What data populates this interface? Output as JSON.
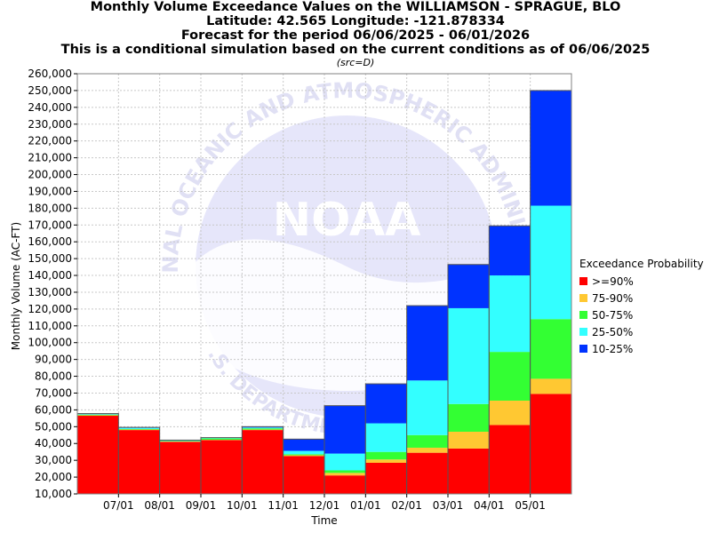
{
  "header": {
    "title_lines": [
      "Monthly Volume Exceedance Values on the WILLIAMSON - SPRAGUE, BLO",
      "Latitude: 42.565 Longitude: -121.878334",
      "Forecast for the period 06/06/2025 - 06/01/2026",
      "This is a conditional simulation based on the current conditions as of 06/06/2025"
    ],
    "src": "(src=D)"
  },
  "watermark": {
    "text": "NOAA",
    "ring_top": "NATIONAL OCEANIC AND ATMOSPHERIC ADMINISTRATION",
    "ring_bottom": "U.S. DEPARTMENT OF COMMERCE"
  },
  "chart_data": {
    "type": "bar",
    "stacked": true,
    "xlabel": "Time",
    "ylabel": "Monthly Volume (AC-FT)",
    "ylim": [
      10000,
      260000
    ],
    "ytick_step": 10000,
    "x_tick_labels": [
      "07/01",
      "08/01",
      "09/01",
      "10/01",
      "11/01",
      "12/01",
      "01/01",
      "02/01",
      "03/01",
      "04/01",
      "05/01"
    ],
    "grid": true,
    "legend_placement": "right",
    "legend_title": "Exceedance Probability",
    "series": [
      {
        "name": ">=90%",
        "color": "#ff0000",
        "values": [
          56500,
          48000,
          41000,
          42000,
          48000,
          32500,
          21000,
          28500,
          34500,
          37000,
          51000,
          69500
        ]
      },
      {
        "name": "75-90%",
        "color": "#ffc832",
        "values": [
          300,
          300,
          200,
          200,
          300,
          500,
          1500,
          2000,
          3000,
          10000,
          14500,
          9000
        ]
      },
      {
        "name": "50-75%",
        "color": "#33ff33",
        "values": [
          400,
          300,
          300,
          800,
          700,
          600,
          1500,
          4500,
          7500,
          16500,
          29000,
          35500
        ]
      },
      {
        "name": "25-50%",
        "color": "#33ffff",
        "values": [
          300,
          700,
          300,
          300,
          500,
          2000,
          10000,
          17000,
          32500,
          57000,
          45500,
          67500
        ]
      },
      {
        "name": "10-25%",
        "color": "#0033ff",
        "values": [
          300,
          300,
          200,
          200,
          500,
          7000,
          28500,
          23500,
          44500,
          26000,
          29500,
          68500
        ]
      }
    ]
  }
}
